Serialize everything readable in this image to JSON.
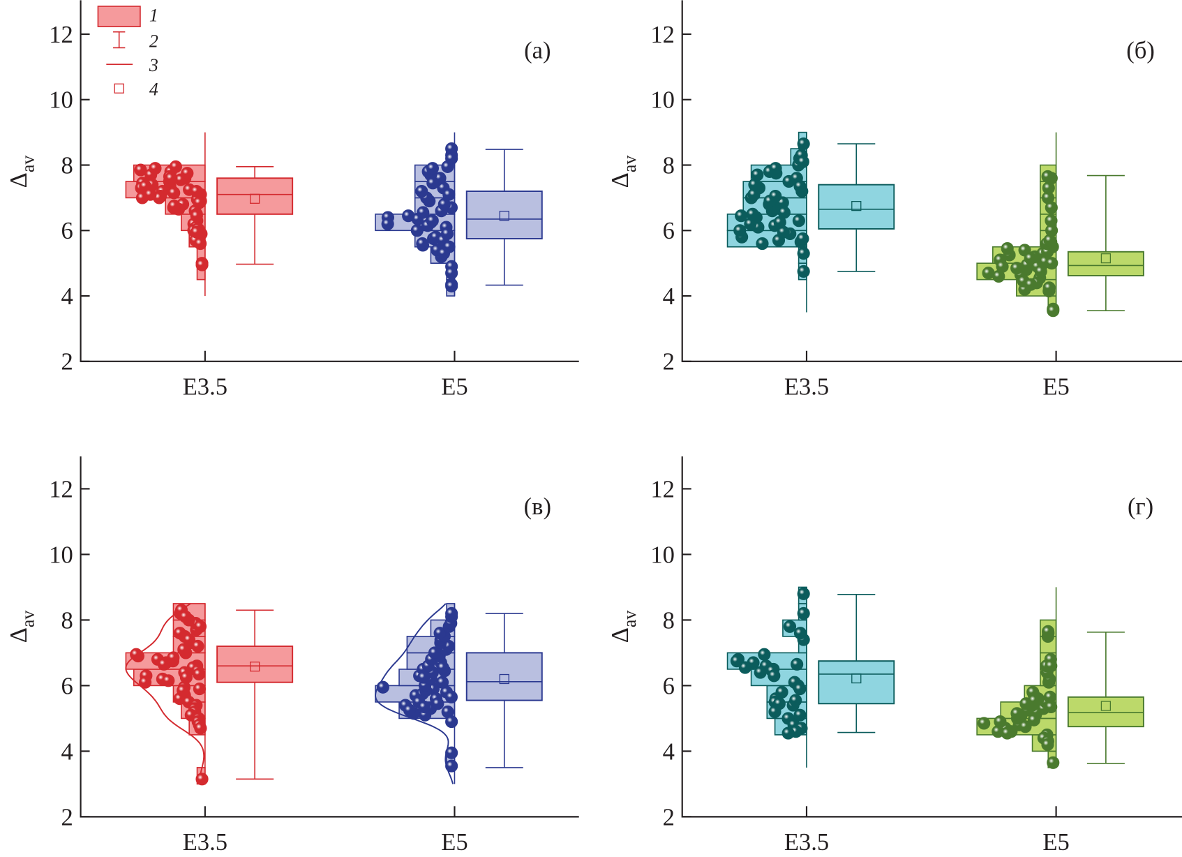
{
  "legend": {
    "items": [
      {
        "label": "1",
        "symbol": "box"
      },
      {
        "label": "2",
        "symbol": "whisker"
      },
      {
        "label": "3",
        "symbol": "median-line"
      },
      {
        "label": "4",
        "symbol": "mean-square"
      }
    ],
    "color": "#d42a2f",
    "fill": "#f59a9c"
  },
  "chart_data": [
    {
      "type": "box",
      "panel_label": "(a)",
      "ylabel": "Δ",
      "ylabel_sub": "av",
      "ylim": [
        2,
        13
      ],
      "yticks": [
        2,
        4,
        6,
        8,
        10,
        12
      ],
      "categories": [
        "E3.5",
        "E5"
      ],
      "groups": [
        {
          "category": "E3.5",
          "color": "#d42a2f",
          "fill": "#f59a9c",
          "box": {
            "q1": 6.5,
            "q3": 7.6,
            "median": 7.1,
            "mean": 6.97,
            "whisker_low": 4.97,
            "whisker_high": 7.95
          },
          "range_line": [
            4,
            9
          ],
          "curve": false,
          "histogram": {
            "start": 4.5,
            "bin_width": 0.5,
            "counts": [
              1,
              1,
              2,
              3,
              5,
              10,
              9
            ]
          },
          "points": [
            7.25,
            7.3,
            7.2,
            7.35,
            7.6,
            7.7,
            7.9,
            7.8,
            7.5,
            7.65,
            7.1,
            7.05,
            7.0,
            7.15,
            7.45,
            7.55,
            7.95,
            7.75,
            7.85,
            7.4,
            7.3,
            7.0,
            6.9,
            6.8,
            6.7,
            6.6,
            6.65,
            6.95,
            6.75,
            6.5,
            6.3,
            6.2,
            6.45,
            6.1,
            6.0,
            5.9,
            5.8,
            5.7,
            5.6,
            6.05,
            5.95,
            5.0,
            4.95,
            7.2,
            7.6,
            7.35,
            7.1,
            6.85
          ]
        },
        {
          "category": "E5",
          "color": "#2b3990",
          "fill": "#b9bfe0",
          "box": {
            "q1": 5.75,
            "q3": 7.2,
            "median": 6.35,
            "mean": 6.45,
            "whisker_low": 4.33,
            "whisker_high": 8.48
          },
          "range_line": [
            4,
            9
          ],
          "curve": false,
          "histogram": {
            "start": 4.0,
            "bin_width": 0.5,
            "counts": [
              1,
              1,
              3,
              5,
              10,
              5,
              5,
              5,
              1
            ]
          },
          "points": [
            6.4,
            6.35,
            6.3,
            6.0,
            6.1,
            6.2,
            6.25,
            6.15,
            6.45,
            5.75,
            5.8,
            5.7,
            5.55,
            5.6,
            5.9,
            5.2,
            5.5,
            5.4,
            5.3,
            4.9,
            4.7,
            4.35,
            4.3,
            6.7,
            6.9,
            6.6,
            6.8,
            7.0,
            7.2,
            7.3,
            7.1,
            7.5,
            7.6,
            7.7,
            7.8,
            7.9,
            7.45,
            7.95,
            8.3,
            8.5,
            8.2,
            6.3,
            6.55
          ]
        }
      ]
    },
    {
      "type": "box",
      "panel_label": "(б)",
      "ylabel": "Δ",
      "ylabel_sub": "av",
      "ylim": [
        2,
        13
      ],
      "yticks": [
        2,
        4,
        6,
        8,
        10,
        12
      ],
      "categories": [
        "E3.5",
        "E5"
      ],
      "groups": [
        {
          "category": "E3.5",
          "color": "#0b5c5c",
          "fill": "#8fd5e0",
          "box": {
            "q1": 6.05,
            "q3": 7.4,
            "median": 6.65,
            "mean": 6.75,
            "whisker_low": 4.75,
            "whisker_high": 8.65
          },
          "range_line": [
            3.5,
            9
          ],
          "curve": false,
          "histogram": {
            "start": 4.5,
            "bin_width": 0.5,
            "counts": [
              1,
              1,
              10,
              10,
              8,
              8,
              7,
              2,
              1
            ]
          },
          "points": [
            5.6,
            5.65,
            5.7,
            5.8,
            5.9,
            6.0,
            6.1,
            6.2,
            6.3,
            6.4,
            6.5,
            6.6,
            6.7,
            6.8,
            6.9,
            7.0,
            7.1,
            7.2,
            7.3,
            7.4,
            7.5,
            7.6,
            7.7,
            7.75,
            7.8,
            7.9,
            8.0,
            8.2,
            8.3,
            8.65,
            8.1,
            6.85,
            6.45,
            6.15,
            5.95,
            5.75,
            5.3,
            4.75,
            7.05,
            6.55,
            6.25,
            7.35
          ]
        },
        {
          "category": "E5",
          "color": "#4a7a2e",
          "fill": "#bcd96a",
          "box": {
            "q1": 4.62,
            "q3": 5.35,
            "median": 4.93,
            "mean": 5.15,
            "whisker_low": 3.55,
            "whisker_high": 7.68
          },
          "range_line": [
            3.5,
            9
          ],
          "curve": false,
          "histogram": {
            "start": 3.5,
            "bin_width": 0.5,
            "counts": [
              1,
              5,
              10,
              8,
              2,
              2,
              2,
              2,
              2
            ]
          },
          "points": [
            4.8,
            4.7,
            4.65,
            4.9,
            5.0,
            5.1,
            5.2,
            5.3,
            5.4,
            5.5,
            4.85,
            4.95,
            5.05,
            4.6,
            4.55,
            4.4,
            4.3,
            4.2,
            4.15,
            4.45,
            4.35,
            4.25,
            4.75,
            5.15,
            5.25,
            5.35,
            5.45,
            5.6,
            5.65,
            5.7,
            6.0,
            6.3,
            6.7,
            7.0,
            7.3,
            7.6,
            7.65,
            3.6,
            3.55,
            4.9,
            5.0
          ]
        }
      ]
    },
    {
      "type": "box",
      "panel_label": "(в)",
      "ylabel": "Δ",
      "ylabel_sub": "av",
      "ylim": [
        2,
        13
      ],
      "yticks": [
        2,
        4,
        6,
        8,
        10,
        12
      ],
      "categories": [
        "E3.5",
        "E5"
      ],
      "groups": [
        {
          "category": "E3.5",
          "color": "#d42a2f",
          "fill": "#f59a9c",
          "box": {
            "q1": 6.1,
            "q3": 7.2,
            "median": 6.6,
            "mean": 6.58,
            "whisker_low": 3.15,
            "whisker_high": 8.3
          },
          "range_line": [
            3.0,
            8.5
          ],
          "curve": true,
          "histogram": {
            "start": 3.0,
            "bin_width": 0.5,
            "counts": [
              1,
              0,
              0,
              2,
              3,
              4,
              9,
              10,
              4,
              4,
              4
            ]
          },
          "points": [
            6.8,
            6.7,
            6.9,
            7.0,
            6.5,
            6.4,
            6.3,
            6.2,
            6.1,
            6.6,
            6.55,
            6.45,
            6.35,
            6.25,
            6.15,
            6.65,
            6.75,
            6.85,
            6.95,
            5.9,
            5.8,
            5.7,
            5.6,
            5.95,
            5.85,
            5.5,
            5.4,
            5.3,
            5.2,
            5.1,
            5.0,
            4.9,
            4.8,
            4.7,
            7.1,
            7.3,
            7.5,
            7.7,
            7.9,
            8.0,
            8.2,
            8.3,
            8.1,
            7.8,
            7.6,
            7.4,
            7.2,
            3.15
          ]
        },
        {
          "category": "E5",
          "color": "#2b3990",
          "fill": "#b9bfe0",
          "box": {
            "q1": 5.55,
            "q3": 7.0,
            "median": 6.12,
            "mean": 6.2,
            "whisker_low": 3.5,
            "whisker_high": 8.2
          },
          "range_line": [
            3.0,
            8.5
          ],
          "curve": true,
          "histogram": {
            "start": 3.5,
            "bin_width": 0.5,
            "counts": [
              1,
              0,
              0,
              7,
              10,
              7,
              6,
              6,
              3,
              1
            ]
          },
          "points": [
            5.9,
            5.8,
            5.7,
            5.6,
            5.5,
            5.75,
            5.65,
            5.85,
            5.95,
            6.0,
            6.1,
            6.2,
            6.3,
            6.4,
            6.45,
            6.5,
            6.6,
            6.7,
            6.8,
            6.9,
            7.0,
            7.1,
            7.2,
            7.3,
            7.4,
            7.5,
            7.6,
            7.8,
            7.9,
            8.1,
            8.2,
            5.4,
            5.3,
            5.2,
            5.1,
            5.15,
            5.25,
            5.35,
            5.45,
            4.9,
            3.95,
            3.55,
            6.25,
            6.55
          ]
        }
      ]
    },
    {
      "type": "box",
      "panel_label": "(г)",
      "ylabel": "Δ",
      "ylabel_sub": "av",
      "ylim": [
        2,
        13
      ],
      "yticks": [
        2,
        4,
        6,
        8,
        10,
        12
      ],
      "categories": [
        "E3.5",
        "E5"
      ],
      "groups": [
        {
          "category": "E3.5",
          "color": "#0b5c5c",
          "fill": "#8fd5e0",
          "box": {
            "q1": 5.45,
            "q3": 6.75,
            "median": 6.35,
            "mean": 6.22,
            "whisker_low": 4.57,
            "whisker_high": 8.78
          },
          "range_line": [
            3.5,
            9
          ],
          "curve": false,
          "histogram": {
            "start": 4.5,
            "bin_width": 0.5,
            "counts": [
              4,
              5,
              5,
              7,
              10,
              1,
              3,
              1,
              1
            ]
          },
          "points": [
            6.95,
            6.8,
            6.7,
            6.6,
            6.5,
            6.55,
            6.45,
            6.65,
            6.75,
            6.4,
            6.3,
            6.0,
            6.1,
            5.9,
            5.8,
            5.6,
            5.5,
            5.4,
            5.45,
            5.2,
            5.1,
            5.0,
            4.8,
            4.7,
            4.6,
            7.4,
            7.6,
            7.8,
            8.2,
            8.8,
            5.55,
            4.55
          ]
        },
        {
          "category": "E5",
          "color": "#4a7a2e",
          "fill": "#bcd96a",
          "box": {
            "q1": 4.75,
            "q3": 5.65,
            "median": 5.18,
            "mean": 5.38,
            "whisker_low": 3.63,
            "whisker_high": 7.63
          },
          "range_line": [
            3.5,
            9
          ],
          "curve": false,
          "histogram": {
            "start": 3.5,
            "bin_width": 0.5,
            "counts": [
              1,
              3,
              10,
              7,
              4,
              2,
              2,
              2,
              2
            ]
          },
          "points": [
            4.6,
            4.7,
            4.8,
            4.9,
            5.0,
            5.1,
            5.2,
            5.3,
            5.4,
            5.5,
            4.95,
            5.05,
            5.15,
            5.25,
            5.35,
            4.75,
            4.85,
            5.45,
            5.6,
            5.7,
            5.8,
            6.1,
            6.2,
            6.4,
            6.6,
            6.8,
            7.5,
            7.6,
            7.65,
            4.5,
            4.4,
            4.3,
            4.2,
            4.6,
            4.55,
            3.65,
            5.55,
            5.65,
            6.6
          ]
        }
      ]
    }
  ]
}
